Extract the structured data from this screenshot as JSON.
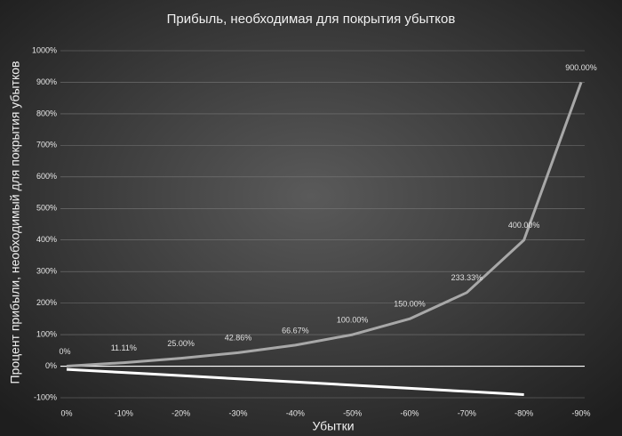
{
  "chart_data": {
    "type": "line",
    "title": "Прибыль, необходимая для покрытия убытков",
    "x_label": "Убытки",
    "y_label": "Процент прибыли, необходимый для покрытия убытков",
    "categories": [
      "0%",
      "-10%",
      "-20%",
      "-30%",
      "-40%",
      "-50%",
      "-60%",
      "-70%",
      "-80%",
      "-90%"
    ],
    "series": [
      {
        "color": "#a8a8a8",
        "values": [
          0,
          11.11,
          25,
          42.86,
          66.67,
          100,
          150,
          233.33,
          400,
          900
        ],
        "value_labels": [
          "0%",
          "11.11%",
          "25.00%",
          "42.86%",
          "66.67%",
          "100.00%",
          "150.00%",
          "233.33%",
          "400.00%",
          "900.00%"
        ]
      },
      {
        "color": "#ffffff",
        "values": [
          -10,
          -20,
          -30,
          -40,
          -50,
          -60,
          -70,
          -80,
          -90,
          null
        ]
      }
    ],
    "ylim": [
      -100,
      1000
    ],
    "yticks": [
      {
        "value": 1000,
        "label": "1000%"
      },
      {
        "value": 900,
        "label": "900%"
      },
      {
        "value": 800,
        "label": "800%"
      },
      {
        "value": 700,
        "label": "700%"
      },
      {
        "value": 600,
        "label": "600%"
      },
      {
        "value": 500,
        "label": "500%"
      },
      {
        "value": 400,
        "label": "400%"
      },
      {
        "value": 300,
        "label": "300%"
      },
      {
        "value": 200,
        "label": "200%"
      },
      {
        "value": 100,
        "label": "100%"
      },
      {
        "value": 0,
        "label": "0%"
      },
      {
        "value": -100,
        "label": "-100%"
      }
    ],
    "grid": true
  }
}
